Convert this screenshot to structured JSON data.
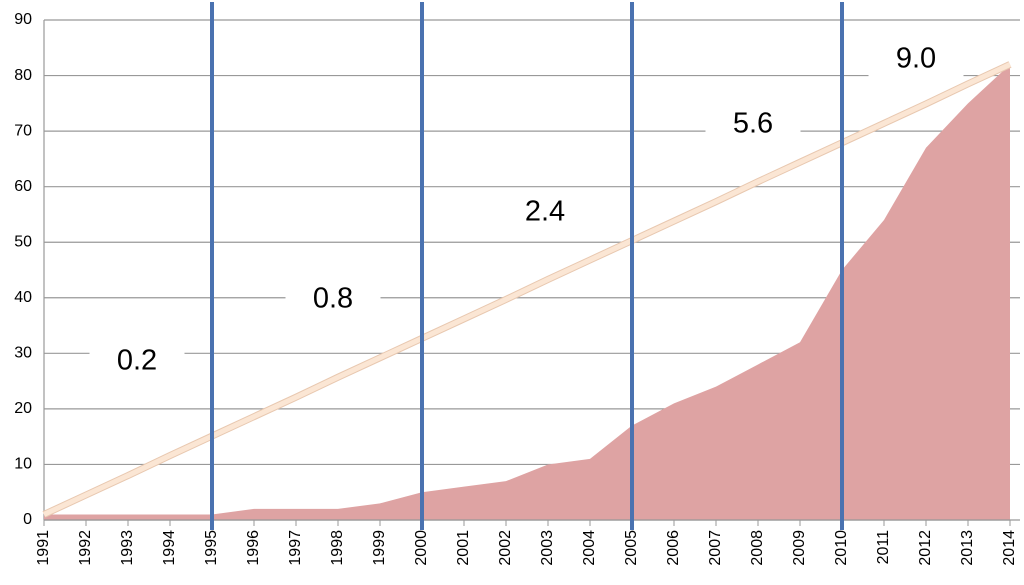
{
  "chart_data": {
    "type": "area",
    "categories": [
      "1991",
      "1992",
      "1993",
      "1994",
      "1995",
      "1996",
      "1997",
      "1998",
      "1999",
      "2000",
      "2001",
      "2002",
      "2003",
      "2004",
      "2005",
      "2006",
      "2007",
      "2008",
      "2009",
      "2010",
      "2011",
      "2012",
      "2013",
      "2014"
    ],
    "series": [
      {
        "kind": "area",
        "color": "#dea3a3",
        "values": [
          1,
          1,
          1,
          1,
          1,
          2,
          2,
          2,
          3,
          5,
          6,
          7,
          10,
          11,
          17,
          21,
          24,
          28,
          32,
          45,
          54,
          67,
          75,
          82
        ]
      },
      {
        "kind": "line",
        "color": "#fbe6d4",
        "values": [
          1,
          4.5,
          8,
          11.6,
          15.1,
          18.6,
          22.1,
          25.7,
          29.2,
          32.7,
          36.2,
          39.7,
          43.3,
          46.8,
          50.3,
          53.8,
          57.3,
          60.9,
          64.4,
          67.9,
          71.4,
          74.9,
          78.5,
          82
        ]
      }
    ],
    "vertical_lines": [
      "1995",
      "2000",
      "2005",
      "2010"
    ],
    "vertical_line_color": "#4a72b0",
    "annotations": [
      "0.2",
      "0.8",
      "2.4",
      "5.6",
      "9.0"
    ],
    "ylim": [
      0,
      90
    ],
    "yticks": [
      0,
      10,
      20,
      30,
      40,
      50,
      60,
      70,
      80,
      90
    ],
    "grid": true
  }
}
